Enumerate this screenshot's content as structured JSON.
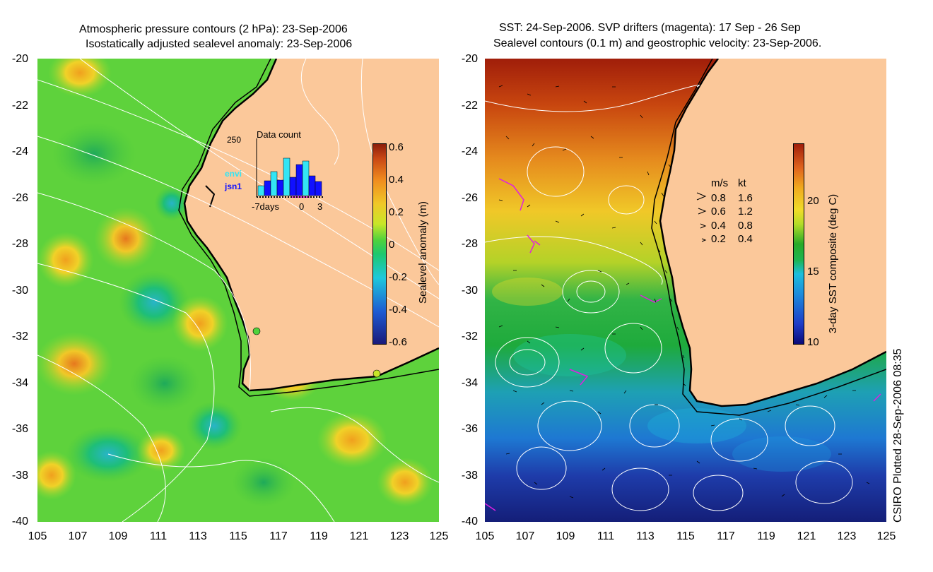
{
  "left_panel": {
    "title_line1": "Atmospheric pressure contours (2 hPa): 23-Sep-2006",
    "title_line2": "Isostatically adjusted sealevel anomaly: 23-Sep-2006",
    "colorbar_label": "Sealevel anomaly (m)",
    "colorbar_ticks": [
      "0.6",
      "0.4",
      "0.2",
      "0",
      "-0.2",
      "-0.4",
      "-0.6"
    ],
    "colorbar_range": [
      -0.6,
      0.6
    ],
    "colorbar_colors": [
      "#1a1a7a",
      "#1e5ad2",
      "#1ec8dc",
      "#1ec86e",
      "#50d23c",
      "#c8e628",
      "#f0c828",
      "#f08c1e",
      "#c84614",
      "#8c1e0a"
    ],
    "inset": {
      "title": "Data count",
      "ymax_label": "250",
      "series": [
        {
          "name": "envi",
          "color": "#33e5f5"
        },
        {
          "name": "jsn1",
          "color": "#1010ff"
        }
      ],
      "x_labels": [
        "-7days",
        "0",
        "3"
      ]
    }
  },
  "right_panel": {
    "title_line1": "SST: 24-Sep-2006. SVP drifters (magenta): 17 Sep - 26 Sep",
    "title_line2": "Sealevel contours (0.1 m) and geostrophic velocity: 23-Sep-2006.",
    "colorbar_label": "3-day SST composite (deg C)",
    "colorbar_ticks": [
      "20",
      "15",
      "10"
    ],
    "colorbar_range": [
      9.5,
      23.5
    ],
    "velocity_legend": {
      "header_ms": "m/s",
      "header_kt": "kt",
      "rows": [
        {
          "ms": "0.8",
          "kt": "1.6"
        },
        {
          "ms": "0.6",
          "kt": "1.2"
        },
        {
          "ms": "0.4",
          "kt": "0.8"
        },
        {
          "ms": "0.2",
          "kt": "0.4"
        }
      ]
    }
  },
  "axes": {
    "lat_ticks": [
      "-20",
      "-22",
      "-24",
      "-26",
      "-28",
      "-30",
      "-32",
      "-34",
      "-36",
      "-38",
      "-40"
    ],
    "lon_ticks": [
      "105",
      "107",
      "109",
      "111",
      "113",
      "115",
      "117",
      "119",
      "121",
      "123",
      "125"
    ],
    "lat_range": [
      -40,
      -20
    ],
    "lon_range": [
      105,
      125
    ]
  },
  "credit": "CSIRO Plotted 28-Sep-2006 08:35",
  "colors": {
    "land": "#fbc89a",
    "coastline": "#000000",
    "contours": "#ffffff",
    "drifters": "#e020e0"
  }
}
